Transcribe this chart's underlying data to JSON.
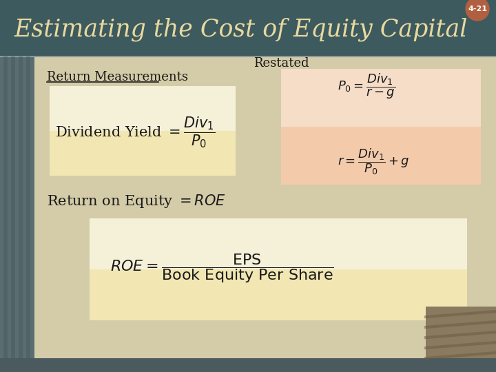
{
  "title": "Estimating the Cost of Equity Capital",
  "slide_num": "4-21",
  "header_bg": "#3d5a5e",
  "header_text_color": "#e8d9a0",
  "body_bg": "#c8bfa0",
  "content_bg": "#d4cba8",
  "box1_bg": "#f5f0d8",
  "box2_bg": "#f5ddc8",
  "box3_bg": "#f5f0d8",
  "subtitle": "Return Measurements",
  "subtitle_color": "#1a1a1a",
  "formula_color": "#1a1a1a",
  "restated_label": "Restated",
  "corner_badge_bg": "#b06040",
  "corner_badge_text": "4-21",
  "left_strip_bg": "#5a6e72",
  "bottom_bar_bg": "#4a5a5e",
  "thumb_bg": "#8a7a60"
}
